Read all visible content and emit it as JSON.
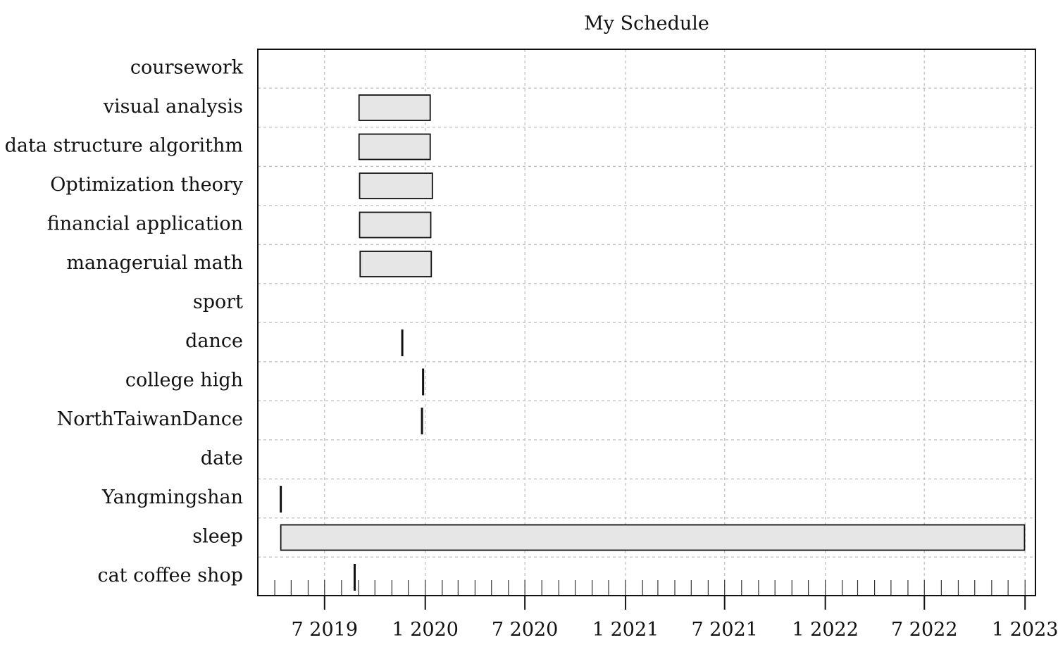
{
  "chart_data": {
    "type": "gantt",
    "title": "My Schedule",
    "xlabel": "",
    "ylabel": "",
    "grid": true,
    "x_axis": {
      "type": "date",
      "range": [
        "2019-03-01",
        "2023-01-20"
      ],
      "tick_dates": [
        "2019-07-01",
        "2020-01-01",
        "2020-07-01",
        "2021-01-01",
        "2021-07-01",
        "2022-01-01",
        "2022-07-01",
        "2023-01-01"
      ],
      "tick_labels": [
        "7 2019",
        "1 2020",
        "7 2020",
        "1 2021",
        "7 2021",
        "1 2022",
        "7 2022",
        "1 2023"
      ]
    },
    "rows": [
      {
        "label": "coursework",
        "group": true
      },
      {
        "label": "visual analysis",
        "start": "2019-09-02",
        "end": "2020-01-10"
      },
      {
        "label": "data structure algorithm",
        "start": "2019-09-02",
        "end": "2020-01-10"
      },
      {
        "label": "Optimization theory",
        "start": "2019-09-03",
        "end": "2020-01-14"
      },
      {
        "label": "financial application",
        "start": "2019-09-03",
        "end": "2020-01-11"
      },
      {
        "label": "manageruial math",
        "start": "2019-09-04",
        "end": "2020-01-12"
      },
      {
        "label": "sport",
        "group": true
      },
      {
        "label": "dance",
        "milestone": "2019-11-20"
      },
      {
        "label": "college high",
        "milestone": "2019-12-28"
      },
      {
        "label": "NorthTaiwanDance",
        "milestone": "2019-12-26"
      },
      {
        "label": "date",
        "group": true
      },
      {
        "label": "Yangmingshan",
        "milestone": "2019-04-12"
      },
      {
        "label": "sleep",
        "start": "2019-04-12",
        "end": "2022-12-31"
      },
      {
        "label": "cat coffee shop",
        "milestone": "2019-08-25"
      }
    ]
  }
}
